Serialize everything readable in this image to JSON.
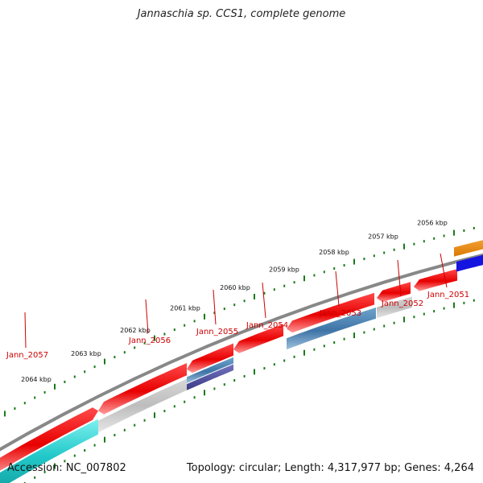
{
  "title": "Jannaschia sp. CCS1, complete genome",
  "footer": {
    "accession": "Accession: NC_007802",
    "summary": "Topology: circular; Length: 4,317,977 bp; Genes: 4,264"
  },
  "scale": {
    "unit_suffix": " kbp",
    "labels": [
      "2064",
      "2063",
      "2062",
      "2061",
      "2060",
      "2059",
      "2058",
      "2057",
      "2056"
    ]
  },
  "genes": [
    {
      "label": "Jann_2057",
      "strand": "minus",
      "color": "#22c8c8"
    },
    {
      "label": "Jann_2056",
      "strand": "minus",
      "color": "#bdbdbd"
    },
    {
      "label": "Jann_2055",
      "strand": "minus",
      "color": "#4a4a9a"
    },
    {
      "label": "Jann_2054",
      "strand": "plus",
      "color": "#ee1111"
    },
    {
      "label": "Jann_2053",
      "strand": "minus",
      "color": "#4a7fb0"
    },
    {
      "label": "Jann_2052",
      "strand": "minus",
      "color": "#bdbdbd"
    },
    {
      "label": "Jann_2051",
      "strand": "plus",
      "color": "#ee1111"
    }
  ],
  "colors": {
    "forward": "#ee1111",
    "backbone": "#888888",
    "ticks": "#1a7a1a",
    "labels": "#cc0000",
    "orange": "#f08c10",
    "blue": "#1515e0"
  }
}
